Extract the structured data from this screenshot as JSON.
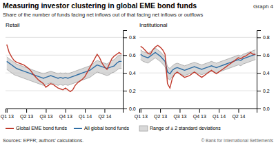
{
  "title": "Measuring investor clustering in global EME bond funds",
  "subtitle": "Share of the number of funds facing net inflows out of that facing net inflows or outflows",
  "annotations": [
    "Graph 4",
    "Sources: EPFR; authors' calculations.",
    "© Bank for International Settlements"
  ],
  "chart_data": [
    {
      "type": "line",
      "title": "Retail",
      "grid": true,
      "categories": [
        "Q1 13",
        null,
        null,
        null,
        null,
        null,
        null,
        null,
        "Q2 13",
        null,
        null,
        null,
        null,
        null,
        null,
        null,
        "Q3 13",
        null,
        null,
        null,
        null,
        null,
        null,
        null,
        "Q4 13",
        null,
        null,
        null,
        null,
        null,
        null,
        null,
        "Q1 14",
        null,
        null,
        null,
        null,
        null,
        null,
        null,
        "Q2 14",
        null,
        null,
        null,
        null,
        null,
        null,
        null
      ],
      "ylim": [
        0.0,
        0.88
      ],
      "yticks": [
        {
          "value": 0.0,
          "label": "0.0"
        },
        0.2,
        0.4,
        0.6,
        0.8
      ],
      "series": [
        {
          "name": "Global EME bond funds",
          "type": "line",
          "color": "#c0392b",
          "values": [
            0.72,
            0.63,
            0.58,
            0.54,
            0.52,
            0.51,
            0.5,
            0.49,
            0.47,
            0.45,
            0.42,
            0.38,
            0.35,
            0.32,
            0.3,
            0.28,
            0.24,
            0.26,
            0.28,
            0.27,
            0.25,
            0.23,
            0.22,
            0.21,
            0.23,
            0.21,
            0.19,
            0.21,
            0.26,
            0.29,
            0.31,
            0.33,
            0.36,
            0.41,
            0.46,
            0.51,
            0.56,
            0.61,
            0.57,
            0.51,
            0.47,
            0.44,
            0.5,
            0.56,
            0.59,
            0.61,
            0.63,
            0.61
          ]
        },
        {
          "name": "All global bond funds",
          "type": "line",
          "color": "#2e6da4",
          "values": [
            0.53,
            0.51,
            0.49,
            0.47,
            0.45,
            0.44,
            0.43,
            0.42,
            0.41,
            0.4,
            0.39,
            0.38,
            0.37,
            0.36,
            0.35,
            0.34,
            0.35,
            0.36,
            0.37,
            0.36,
            0.35,
            0.34,
            0.35,
            0.34,
            0.35,
            0.34,
            0.35,
            0.36,
            0.37,
            0.38,
            0.39,
            0.4,
            0.41,
            0.42,
            0.43,
            0.45,
            0.47,
            0.49,
            0.48,
            0.47,
            0.46,
            0.45,
            0.46,
            0.47,
            0.48,
            0.51,
            0.53,
            0.53
          ]
        },
        {
          "type": "area",
          "color": "#b8b8b8",
          "upper": [
            0.58,
            0.56,
            0.54,
            0.52,
            0.5,
            0.49,
            0.48,
            0.47,
            0.46,
            0.45,
            0.44,
            0.43,
            0.42,
            0.41,
            0.4,
            0.39,
            0.4,
            0.41,
            0.42,
            0.41,
            0.4,
            0.39,
            0.4,
            0.39,
            0.4,
            0.39,
            0.4,
            0.41,
            0.42,
            0.43,
            0.44,
            0.45,
            0.46,
            0.47,
            0.48,
            0.5,
            0.52,
            0.54,
            0.53,
            0.52,
            0.51,
            0.5,
            0.52,
            0.54,
            0.55,
            0.58,
            0.6,
            0.6
          ],
          "lower": [
            0.44,
            0.42,
            0.4,
            0.38,
            0.37,
            0.36,
            0.35,
            0.34,
            0.33,
            0.32,
            0.31,
            0.3,
            0.29,
            0.28,
            0.27,
            0.26,
            0.27,
            0.28,
            0.29,
            0.28,
            0.27,
            0.26,
            0.27,
            0.26,
            0.27,
            0.26,
            0.27,
            0.28,
            0.29,
            0.3,
            0.31,
            0.32,
            0.33,
            0.34,
            0.35,
            0.37,
            0.39,
            0.41,
            0.4,
            0.39,
            0.38,
            0.37,
            0.38,
            0.4,
            0.41,
            0.43,
            0.45,
            0.45
          ]
        }
      ]
    },
    {
      "type": "line",
      "title": "Institutional",
      "grid": true,
      "categories": [
        "Q1 13",
        null,
        null,
        null,
        null,
        null,
        null,
        null,
        "Q2 13",
        null,
        null,
        null,
        null,
        null,
        null,
        null,
        "Q3 13",
        null,
        null,
        null,
        null,
        null,
        null,
        null,
        "Q4 13",
        null,
        null,
        null,
        null,
        null,
        null,
        null,
        "Q1 14",
        null,
        null,
        null,
        null,
        null,
        null,
        null,
        "Q2 14",
        null,
        null,
        null,
        null,
        null,
        null,
        null
      ],
      "ylim": [
        0.0,
        0.88
      ],
      "yticks": [
        {
          "value": 0.0,
          "label": "0.0"
        },
        0.2,
        0.4,
        0.6,
        0.8
      ],
      "series": [
        {
          "type": "line",
          "color": "#c0392b",
          "values": [
            0.7,
            0.68,
            0.65,
            0.62,
            0.61,
            0.66,
            0.69,
            0.71,
            0.69,
            0.66,
            0.61,
            0.28,
            0.23,
            0.34,
            0.39,
            0.41,
            0.39,
            0.37,
            0.35,
            0.36,
            0.37,
            0.39,
            0.41,
            0.39,
            0.37,
            0.35,
            0.37,
            0.39,
            0.41,
            0.43,
            0.41,
            0.39,
            0.41,
            0.43,
            0.45,
            0.47,
            0.49,
            0.51,
            0.53,
            0.55,
            0.57,
            0.56,
            0.58,
            0.59,
            0.61,
            0.63,
            0.61,
            0.61
          ]
        },
        {
          "type": "line",
          "color": "#2e6da4",
          "values": [
            0.61,
            0.59,
            0.58,
            0.57,
            0.59,
            0.61,
            0.63,
            0.61,
            0.59,
            0.56,
            0.53,
            0.41,
            0.39,
            0.43,
            0.45,
            0.46,
            0.45,
            0.44,
            0.43,
            0.44,
            0.45,
            0.46,
            0.47,
            0.46,
            0.45,
            0.44,
            0.45,
            0.46,
            0.47,
            0.48,
            0.47,
            0.46,
            0.47,
            0.48,
            0.49,
            0.5,
            0.51,
            0.52,
            0.53,
            0.54,
            0.55,
            0.54,
            0.56,
            0.57,
            0.58,
            0.59,
            0.6,
            0.61
          ]
        },
        {
          "name": "Range of ± 2 standard deviations",
          "type": "area",
          "color": "#b8b8b8",
          "upper": [
            0.66,
            0.64,
            0.63,
            0.62,
            0.64,
            0.66,
            0.68,
            0.66,
            0.64,
            0.61,
            0.58,
            0.47,
            0.45,
            0.48,
            0.5,
            0.51,
            0.5,
            0.49,
            0.48,
            0.49,
            0.5,
            0.51,
            0.52,
            0.51,
            0.5,
            0.49,
            0.5,
            0.51,
            0.52,
            0.53,
            0.52,
            0.51,
            0.52,
            0.53,
            0.54,
            0.55,
            0.56,
            0.57,
            0.58,
            0.59,
            0.6,
            0.59,
            0.61,
            0.62,
            0.63,
            0.64,
            0.65,
            0.66
          ],
          "lower": [
            0.55,
            0.53,
            0.52,
            0.51,
            0.53,
            0.55,
            0.57,
            0.55,
            0.53,
            0.5,
            0.47,
            0.34,
            0.32,
            0.36,
            0.39,
            0.4,
            0.39,
            0.38,
            0.37,
            0.38,
            0.39,
            0.4,
            0.41,
            0.4,
            0.39,
            0.38,
            0.39,
            0.4,
            0.41,
            0.42,
            0.41,
            0.4,
            0.41,
            0.42,
            0.43,
            0.44,
            0.45,
            0.46,
            0.47,
            0.48,
            0.49,
            0.48,
            0.5,
            0.51,
            0.52,
            0.53,
            0.54,
            0.55
          ]
        }
      ]
    }
  ]
}
